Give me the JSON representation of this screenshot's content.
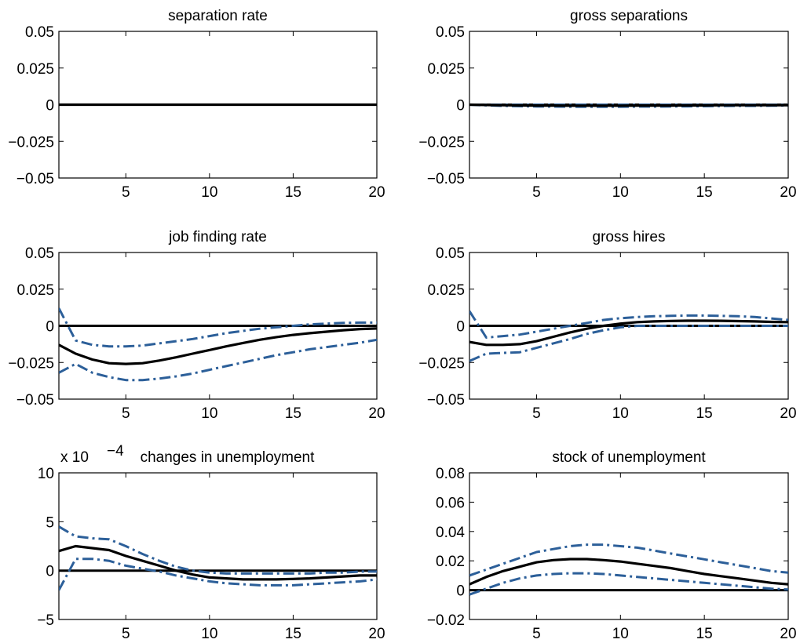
{
  "chart_data": [
    {
      "type": "line",
      "title": "separation rate",
      "x": [
        1,
        2,
        3,
        4,
        5,
        6,
        7,
        8,
        9,
        10,
        11,
        12,
        13,
        14,
        15,
        16,
        17,
        18,
        19,
        20
      ],
      "xlim": [
        1,
        20
      ],
      "ylim": [
        -0.05,
        0.05
      ],
      "xticks": [
        5,
        10,
        15,
        20
      ],
      "yticks": [
        0.05,
        0.025,
        0,
        -0.025,
        -0.05
      ],
      "yticklabels": [
        "0.05",
        "0.025",
        "0",
        "−0.025",
        "−0.05"
      ],
      "grid": false,
      "series": [
        {
          "style": "zero",
          "values": [
            0,
            0,
            0,
            0,
            0,
            0,
            0,
            0,
            0,
            0,
            0,
            0,
            0,
            0,
            0,
            0,
            0,
            0,
            0,
            0
          ]
        },
        {
          "style": "upper",
          "values": [
            0,
            0,
            0,
            0,
            0,
            0,
            0,
            0,
            0,
            0,
            0,
            0,
            0,
            0,
            0,
            0,
            0,
            0,
            0,
            0
          ]
        },
        {
          "style": "lower",
          "values": [
            0,
            0,
            0,
            0,
            0,
            0,
            0,
            0,
            0,
            0,
            0,
            0,
            0,
            0,
            0,
            0,
            0,
            0,
            0,
            0
          ]
        },
        {
          "style": "mean",
          "values": [
            0,
            0,
            0,
            0,
            0,
            0,
            0,
            0,
            0,
            0,
            0,
            0,
            0,
            0,
            0,
            0,
            0,
            0,
            0,
            0
          ]
        }
      ]
    },
    {
      "type": "line",
      "title": "gross separations",
      "x": [
        1,
        2,
        3,
        4,
        5,
        6,
        7,
        8,
        9,
        10,
        11,
        12,
        13,
        14,
        15,
        16,
        17,
        18,
        19,
        20
      ],
      "xlim": [
        1,
        20
      ],
      "ylim": [
        -0.05,
        0.05
      ],
      "xticks": [
        5,
        10,
        15,
        20
      ],
      "yticks": [
        0.05,
        0.025,
        0,
        -0.025,
        -0.05
      ],
      "yticklabels": [
        "0.05",
        "0.025",
        "0",
        "−0.025",
        "−0.05"
      ],
      "grid": false,
      "series": [
        {
          "style": "zero",
          "values": [
            0,
            0,
            0,
            0,
            0,
            0,
            0,
            0,
            0,
            0,
            0,
            0,
            0,
            0,
            0,
            0,
            0,
            0,
            0,
            0
          ]
        },
        {
          "style": "upper",
          "values": [
            0,
            0,
            0,
            0,
            0,
            0,
            0,
            0,
            0,
            0,
            0,
            0,
            0,
            0,
            0,
            0,
            0,
            0,
            0,
            0
          ]
        },
        {
          "style": "lower",
          "values": [
            0,
            -0.0005,
            -0.0008,
            -0.001,
            -0.0012,
            -0.0013,
            -0.0014,
            -0.0014,
            -0.0014,
            -0.0014,
            -0.0013,
            -0.0013,
            -0.0012,
            -0.0011,
            -0.001,
            -0.0009,
            -0.0008,
            -0.0008,
            -0.0007,
            -0.0006
          ]
        },
        {
          "style": "mean",
          "values": [
            0,
            -0.0002,
            -0.0004,
            -0.0005,
            -0.0006,
            -0.0006,
            -0.0007,
            -0.0007,
            -0.0007,
            -0.0007,
            -0.0006,
            -0.0006,
            -0.0006,
            -0.0005,
            -0.0005,
            -0.0004,
            -0.0004,
            -0.0004,
            -0.0003,
            -0.0003
          ]
        }
      ]
    },
    {
      "type": "line",
      "title": "job finding rate",
      "x": [
        1,
        2,
        3,
        4,
        5,
        6,
        7,
        8,
        9,
        10,
        11,
        12,
        13,
        14,
        15,
        16,
        17,
        18,
        19,
        20
      ],
      "xlim": [
        1,
        20
      ],
      "ylim": [
        -0.05,
        0.05
      ],
      "xticks": [
        5,
        10,
        15,
        20
      ],
      "yticks": [
        0.05,
        0.025,
        0,
        -0.025,
        -0.05
      ],
      "yticklabels": [
        "0.05",
        "0.025",
        "0",
        "−0.025",
        "−0.05"
      ],
      "grid": false,
      "series": [
        {
          "style": "zero",
          "values": [
            0,
            0,
            0,
            0,
            0,
            0,
            0,
            0,
            0,
            0,
            0,
            0,
            0,
            0,
            0,
            0,
            0,
            0,
            0,
            0
          ]
        },
        {
          "style": "upper",
          "values": [
            0.012,
            -0.01,
            -0.013,
            -0.014,
            -0.014,
            -0.0135,
            -0.012,
            -0.0105,
            -0.009,
            -0.007,
            -0.005,
            -0.0035,
            -0.002,
            -0.001,
            0,
            0.001,
            0.0015,
            0.002,
            0.0022,
            0.0022
          ]
        },
        {
          "style": "lower",
          "values": [
            -0.032,
            -0.026,
            -0.032,
            -0.035,
            -0.037,
            -0.037,
            -0.036,
            -0.0345,
            -0.0325,
            -0.03,
            -0.0275,
            -0.025,
            -0.0225,
            -0.02,
            -0.018,
            -0.016,
            -0.0145,
            -0.013,
            -0.0115,
            -0.0095
          ]
        },
        {
          "style": "mean",
          "values": [
            -0.013,
            -0.019,
            -0.023,
            -0.0255,
            -0.026,
            -0.0255,
            -0.0237,
            -0.0215,
            -0.019,
            -0.0165,
            -0.014,
            -0.0117,
            -0.0095,
            -0.0077,
            -0.0062,
            -0.005,
            -0.004,
            -0.003,
            -0.0022,
            -0.0018
          ]
        }
      ]
    },
    {
      "type": "line",
      "title": "gross hires",
      "x": [
        1,
        2,
        3,
        4,
        5,
        6,
        7,
        8,
        9,
        10,
        11,
        12,
        13,
        14,
        15,
        16,
        17,
        18,
        19,
        20
      ],
      "xlim": [
        1,
        20
      ],
      "ylim": [
        -0.05,
        0.05
      ],
      "xticks": [
        5,
        10,
        15,
        20
      ],
      "yticks": [
        0.05,
        0.025,
        0,
        -0.025,
        -0.05
      ],
      "yticklabels": [
        "0.05",
        "0.025",
        "0",
        "−0.025",
        "−0.05"
      ],
      "grid": false,
      "series": [
        {
          "style": "zero",
          "values": [
            0,
            0,
            0,
            0,
            0,
            0,
            0,
            0,
            0,
            0,
            0,
            0,
            0,
            0,
            0,
            0,
            0,
            0,
            0,
            0
          ]
        },
        {
          "style": "upper",
          "values": [
            0.01,
            -0.008,
            -0.007,
            -0.006,
            -0.004,
            -0.002,
            0,
            0.002,
            0.004,
            0.0052,
            0.006,
            0.0065,
            0.0068,
            0.007,
            0.007,
            0.0068,
            0.0065,
            0.006,
            0.005,
            0.004
          ]
        },
        {
          "style": "lower",
          "values": [
            -0.024,
            -0.019,
            -0.0185,
            -0.018,
            -0.015,
            -0.012,
            -0.009,
            -0.0055,
            -0.003,
            -0.001,
            0,
            0,
            0,
            0,
            0,
            0,
            0,
            0,
            0,
            0
          ]
        },
        {
          "style": "mean",
          "values": [
            -0.011,
            -0.013,
            -0.013,
            -0.0125,
            -0.0105,
            -0.0075,
            -0.0045,
            -0.002,
            0,
            0.0015,
            0.0025,
            0.003,
            0.0033,
            0.0035,
            0.0035,
            0.0034,
            0.0032,
            0.003,
            0.0027,
            0.0025
          ]
        }
      ]
    },
    {
      "type": "line",
      "title": "changes in unemployment",
      "multiplier": {
        "base": "x 10",
        "exponent": "−4"
      },
      "x": [
        1,
        2,
        3,
        4,
        5,
        6,
        7,
        8,
        9,
        10,
        11,
        12,
        13,
        14,
        15,
        16,
        17,
        18,
        19,
        20
      ],
      "xlim": [
        1,
        20
      ],
      "ylim": [
        -5,
        10
      ],
      "xticks": [
        10,
        15,
        20,
        5
      ],
      "yticks": [
        10,
        5,
        0,
        -5
      ],
      "yticklabels": [
        "10",
        "5",
        "0",
        "−5"
      ],
      "grid": false,
      "series": [
        {
          "style": "zero",
          "values": [
            0,
            0,
            0,
            0,
            0,
            0,
            0,
            0,
            0,
            0,
            0,
            0,
            0,
            0,
            0,
            0,
            0,
            0,
            0,
            0
          ]
        },
        {
          "style": "upper",
          "values": [
            4.5,
            3.5,
            3.3,
            3.2,
            2.5,
            1.7,
            1,
            0.4,
            0,
            -0.2,
            -0.3,
            -0.3,
            -0.3,
            -0.3,
            -0.3,
            -0.3,
            -0.2,
            -0.2,
            -0.1,
            -0.1
          ]
        },
        {
          "style": "lower",
          "values": [
            -2,
            1.2,
            1.2,
            1,
            0.5,
            0.2,
            -0.1,
            -0.5,
            -0.8,
            -1.1,
            -1.3,
            -1.4,
            -1.5,
            -1.5,
            -1.5,
            -1.4,
            -1.3,
            -1.2,
            -1.1,
            -0.9
          ]
        },
        {
          "style": "mean",
          "values": [
            2,
            2.5,
            2.3,
            2.1,
            1.5,
            1,
            0.5,
            0,
            -0.4,
            -0.7,
            -0.8,
            -0.9,
            -0.9,
            -0.9,
            -0.85,
            -0.8,
            -0.7,
            -0.6,
            -0.5,
            -0.5
          ]
        }
      ]
    },
    {
      "type": "line",
      "title": "stock of unemployment",
      "x": [
        1,
        2,
        3,
        4,
        5,
        6,
        7,
        8,
        9,
        10,
        11,
        12,
        13,
        14,
        15,
        16,
        17,
        18,
        19,
        20
      ],
      "xlim": [
        1,
        20
      ],
      "ylim": [
        -0.02,
        0.08
      ],
      "xticks": [
        5,
        10,
        15,
        20
      ],
      "yticks": [
        0.08,
        0.06,
        0.04,
        0.02,
        0,
        -0.02
      ],
      "yticklabels": [
        "0.08",
        "0.06",
        "0.04",
        "0.02",
        "0",
        "−0.02"
      ],
      "grid": false,
      "series": [
        {
          "style": "zero",
          "values": [
            0,
            0,
            0,
            0,
            0,
            0,
            0,
            0,
            0,
            0,
            0,
            0,
            0,
            0,
            0,
            0,
            0,
            0,
            0,
            0
          ]
        },
        {
          "style": "upper",
          "values": [
            0.01,
            0.014,
            0.018,
            0.022,
            0.026,
            0.028,
            0.03,
            0.031,
            0.031,
            0.03,
            0.029,
            0.027,
            0.025,
            0.023,
            0.021,
            0.019,
            0.017,
            0.015,
            0.013,
            0.012
          ]
        },
        {
          "style": "lower",
          "values": [
            -0.003,
            0.001,
            0.005,
            0.008,
            0.01,
            0.011,
            0.0115,
            0.0115,
            0.011,
            0.01,
            0.009,
            0.008,
            0.007,
            0.006,
            0.005,
            0.004,
            0.003,
            0.002,
            0.001,
            0.0005
          ]
        },
        {
          "style": "mean",
          "values": [
            0.004,
            0.009,
            0.013,
            0.016,
            0.019,
            0.0205,
            0.0212,
            0.0212,
            0.0205,
            0.0195,
            0.018,
            0.0165,
            0.015,
            0.013,
            0.011,
            0.0095,
            0.008,
            0.0065,
            0.005,
            0.004
          ]
        }
      ]
    }
  ],
  "colors": {
    "mean": "#000000",
    "band": "#2c5f99",
    "zero": "#000000",
    "frame": "#000000"
  }
}
